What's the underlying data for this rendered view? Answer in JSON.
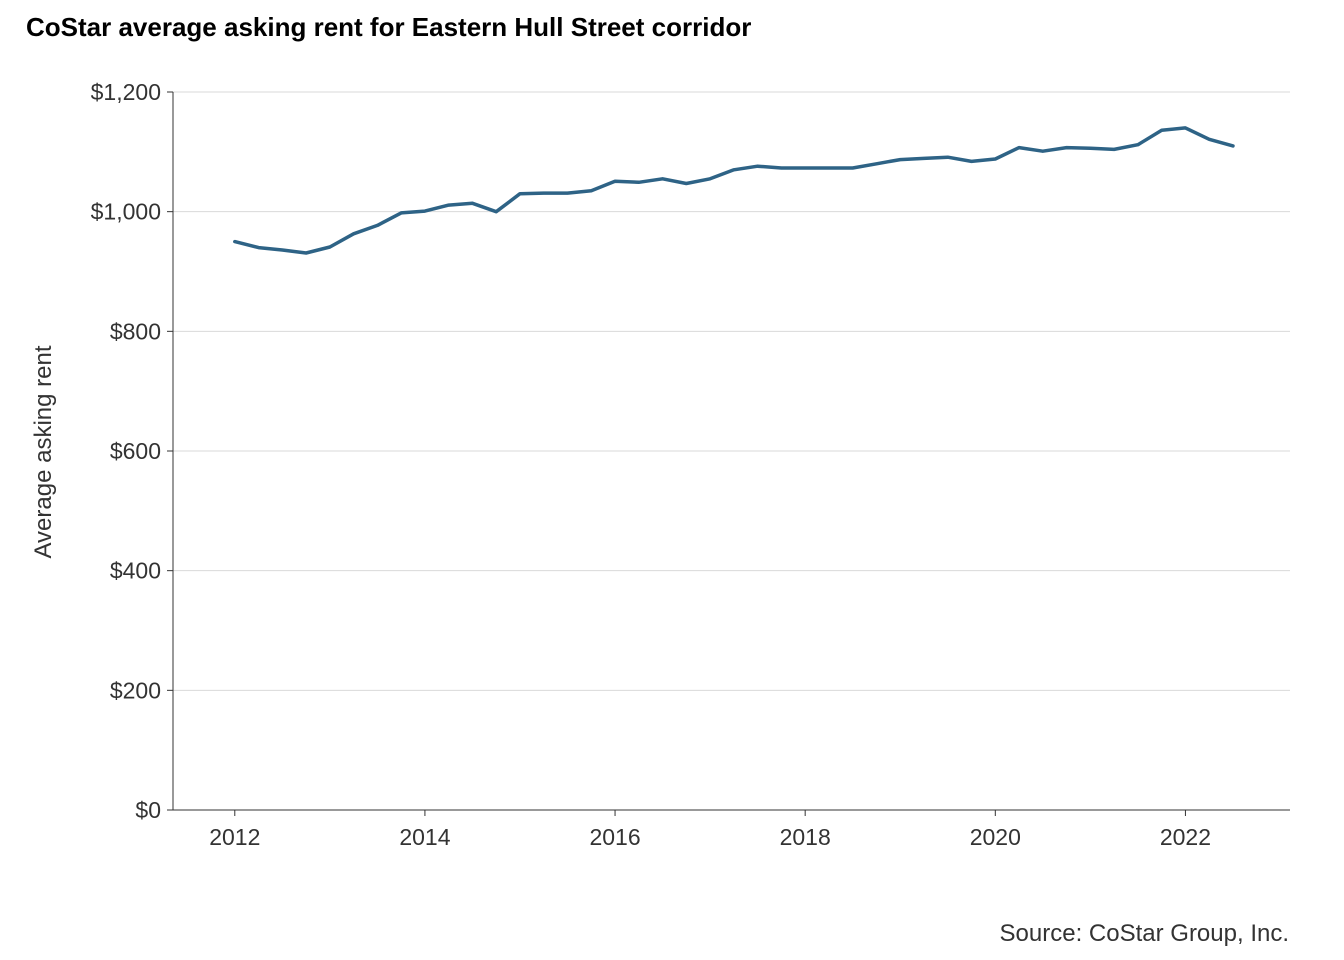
{
  "title": "CoStar average asking rent for Eastern Hull Street corridor",
  "source": "Source: CoStar Group, Inc.",
  "chart_data": {
    "type": "line",
    "title": "CoStar average asking rent for Eastern Hull Street corridor",
    "xlabel": "",
    "ylabel": "Average asking rent",
    "xlim": [
      2011.35,
      2023.1
    ],
    "ylim": [
      0,
      1200
    ],
    "x_ticks": [
      2012,
      2014,
      2016,
      2018,
      2020,
      2022
    ],
    "x_tick_labels": [
      "2012",
      "2014",
      "2016",
      "2018",
      "2020",
      "2022"
    ],
    "y_ticks": [
      0,
      200,
      400,
      600,
      800,
      1000,
      1200
    ],
    "y_tick_labels": [
      "$0",
      "$200",
      "$400",
      "$600",
      "$800",
      "$1,000",
      "$1,200"
    ],
    "grid": "horizontal",
    "line_color": "#2e6386",
    "series": [
      {
        "x": [
          2012.0,
          2012.25,
          2012.5,
          2012.75,
          2013.0,
          2013.25,
          2013.5,
          2013.75,
          2014.0,
          2014.25,
          2014.5,
          2014.75,
          2015.0,
          2015.25,
          2015.5,
          2015.75,
          2016.0,
          2016.25,
          2016.5,
          2016.75,
          2017.0,
          2017.25,
          2017.5,
          2017.75,
          2018.0,
          2018.25,
          2018.5,
          2018.75,
          2019.0,
          2019.25,
          2019.5,
          2019.75,
          2020.0,
          2020.25,
          2020.5,
          2020.75,
          2021.0,
          2021.25,
          2021.5,
          2021.75,
          2022.0,
          2022.25,
          2022.5
        ],
        "values": [
          950,
          940,
          936,
          931,
          941,
          963,
          977,
          998,
          1001,
          1011,
          1014,
          1000,
          1030,
          1031,
          1031,
          1035,
          1051,
          1049,
          1055,
          1047,
          1055,
          1070,
          1076,
          1073,
          1073,
          1073,
          1073,
          1080,
          1087,
          1089,
          1091,
          1084,
          1088,
          1107,
          1101,
          1107,
          1106,
          1104,
          1112,
          1136,
          1140,
          1121,
          1110
        ]
      }
    ]
  }
}
